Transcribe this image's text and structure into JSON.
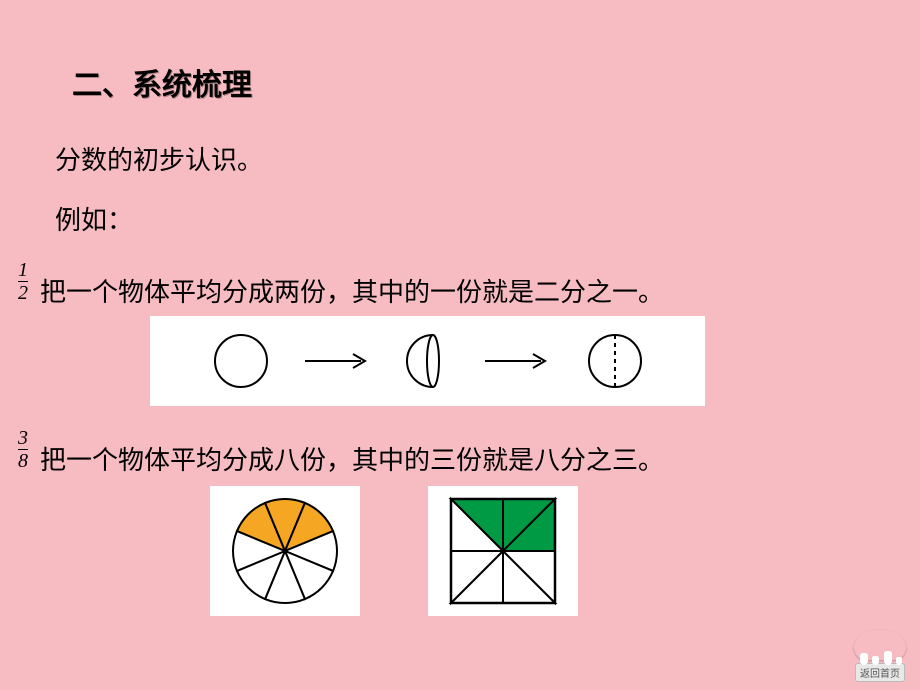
{
  "heading": "二、系统梳理",
  "subtitle": "分数的初步认识。",
  "example_label": "例如：",
  "line1": {
    "fraction_num": "1",
    "fraction_den": "2",
    "text": "把一个物体平均分成两份，其中的一份就是二分之一。"
  },
  "line2": {
    "fraction_num": "3",
    "fraction_den": "8",
    "text": "把一个物体平均分成八份，其中的三份就是八分之三。"
  },
  "diagram1": {
    "type": "sequence",
    "background": "#ffffff",
    "stroke": "#000000",
    "stages": [
      "whole-circle",
      "half-fold",
      "circle-half-dashed"
    ]
  },
  "pie": {
    "type": "pie",
    "slices": 8,
    "filled": [
      0,
      1,
      2
    ],
    "fill_color": "#f5a623",
    "empty_color": "#ffffff",
    "stroke": "#000000",
    "background": "#ffffff"
  },
  "square": {
    "type": "square-8-triangles",
    "filled": [
      0,
      1,
      2
    ],
    "fill_color": "#009944",
    "empty_color": "#ffffff",
    "stroke": "#000000",
    "background": "#ffffff"
  },
  "heading_fontsize": 30,
  "body_fontsize": 26,
  "fraction_fontsize": 20,
  "back_label": "返回首页"
}
